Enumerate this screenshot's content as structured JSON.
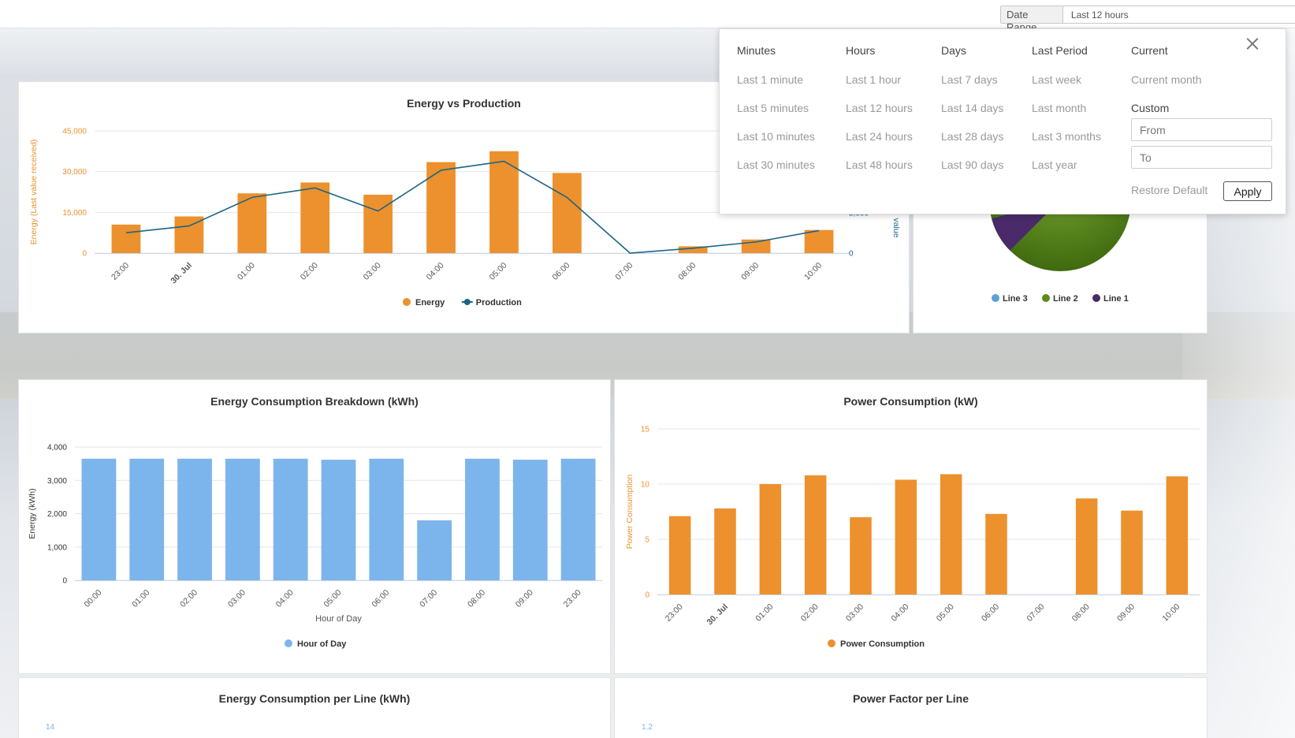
{
  "topbar": {
    "date_range_label": "Date Range",
    "date_range_value": "Last 12 hours"
  },
  "dropdown": {
    "columns": [
      {
        "heading": "Minutes",
        "items": [
          "Last 1 minute",
          "Last 5 minutes",
          "Last 10 minutes",
          "Last 30 minutes"
        ]
      },
      {
        "heading": "Hours",
        "items": [
          "Last 1 hour",
          "Last 12 hours",
          "Last 24 hours",
          "Last 48 hours"
        ]
      },
      {
        "heading": "Days",
        "items": [
          "Last 7 days",
          "Last 14 days",
          "Last 28 days",
          "Last 90 days"
        ]
      },
      {
        "heading": "Last Period",
        "items": [
          "Last week",
          "Last month",
          "Last 3 months",
          "Last year"
        ]
      },
      {
        "heading": "Current",
        "items": [
          "Current month",
          "Custom"
        ]
      }
    ],
    "from_placeholder": "From",
    "to_placeholder": "To",
    "restore_label": "Restore Default",
    "apply_label": "Apply",
    "close_icon": "close-icon"
  },
  "panels": {
    "energy_vs_production": {
      "title": "Energy vs Production"
    },
    "lines_pie": {
      "title": ""
    },
    "energy_breakdown": {
      "title": "Energy Consumption Breakdown (kWh)"
    },
    "power_consumption": {
      "title": "Power Consumption (kW)"
    },
    "energy_per_line": {
      "title": "Energy Consumption per Line (kWh)"
    },
    "power_factor": {
      "title": "Power Factor per Line"
    }
  },
  "chart_data": [
    {
      "id": "energy_vs_production",
      "type": "bar",
      "title": "Energy vs Production",
      "categories": [
        "23:00",
        "30. Jul",
        "01:00",
        "02:00",
        "03:00",
        "04:00",
        "05:00",
        "06:00",
        "07:00",
        "08:00",
        "09:00",
        "10:00"
      ],
      "bold_category": "30. Jul",
      "ylabel": "Energy (Last value received)",
      "y2label": "value",
      "ylim": [
        0,
        45000
      ],
      "yticks": [
        "0",
        "15,000",
        "30,000",
        "45,000"
      ],
      "y2ticks_visible": [
        "0",
        "5,000"
      ],
      "series": [
        {
          "name": "Energy",
          "type": "bar",
          "color": "#ec912d",
          "values": [
            10500,
            13500,
            22000,
            26000,
            21500,
            33500,
            37500,
            29500,
            0,
            2500,
            5000,
            8500
          ]
        },
        {
          "name": "Production",
          "type": "line",
          "color": "#1d6586",
          "values": [
            7500,
            10000,
            20500,
            24000,
            15500,
            30500,
            33800,
            20500,
            0,
            1800,
            4100,
            8300
          ]
        }
      ],
      "legend": "bottom-center"
    },
    {
      "id": "lines_pie",
      "type": "pie",
      "legend": "bottom-center",
      "series": [
        {
          "name": "Line 3",
          "color": "#5aa1d8"
        },
        {
          "name": "Line 2",
          "color": "#5b8a1e"
        },
        {
          "name": "Line 1",
          "color": "#4a2a6a"
        }
      ]
    },
    {
      "id": "energy_breakdown",
      "type": "bar",
      "title": "Energy Consumption Breakdown (kWh)",
      "categories": [
        "00:00",
        "01:00",
        "02:00",
        "03:00",
        "04:00",
        "05:00",
        "06:00",
        "07:00",
        "08:00",
        "09:00",
        "23:00"
      ],
      "xlabel": "Hour of Day",
      "ylabel": "Energy (kWh)",
      "ylim": [
        0,
        4000
      ],
      "yticks": [
        "0",
        "1,000",
        "2,000",
        "3,000",
        "4,000"
      ],
      "series": [
        {
          "name": "Hour of Day",
          "color": "#7cb5ec",
          "values": [
            3650,
            3650,
            3650,
            3650,
            3650,
            3620,
            3650,
            1800,
            3650,
            3620,
            3650
          ]
        }
      ],
      "legend": "bottom-center"
    },
    {
      "id": "power_consumption",
      "type": "bar",
      "title": "Power Consumption (kW)",
      "categories": [
        "23:00",
        "30. Jul",
        "01:00",
        "02:00",
        "03:00",
        "04:00",
        "05:00",
        "06:00",
        "07:00",
        "08:00",
        "09:00",
        "10:00"
      ],
      "bold_category": "30. Jul",
      "ylabel": "Power Consumption",
      "ylim": [
        0,
        15
      ],
      "yticks": [
        "0",
        "5",
        "10",
        "15"
      ],
      "series": [
        {
          "name": "Power Consumption",
          "color": "#ec912d",
          "values": [
            7.1,
            7.8,
            10.0,
            10.8,
            7.0,
            10.4,
            10.9,
            7.3,
            0,
            8.7,
            7.6,
            10.7
          ]
        }
      ],
      "legend": "bottom-center"
    },
    {
      "id": "energy_per_line",
      "type": "bar",
      "title": "Energy Consumption per Line (kWh)",
      "yticks_visible": [
        "14"
      ]
    },
    {
      "id": "power_factor",
      "type": "line",
      "title": "Power Factor per Line",
      "yticks_visible": [
        "1.2"
      ]
    }
  ]
}
